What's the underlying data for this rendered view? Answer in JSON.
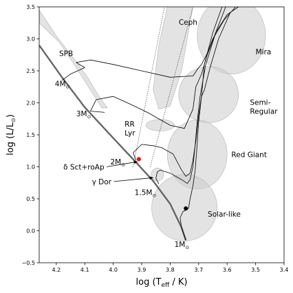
{
  "chart_data": {
    "type": "scatter",
    "xlabel": "log (T",
    "xlabel_sub": "eff",
    "xlabel_tail": " / K)",
    "ylabel": "log (L/L",
    "ylabel_sun": "⊙",
    "ylabel_tail": ")",
    "xlim": [
      4.26,
      3.4
    ],
    "ylim": [
      -0.5,
      3.5
    ],
    "x_ticks": [
      4.2,
      4.1,
      4.0,
      3.9,
      3.8,
      3.7,
      3.6,
      3.5,
      3.4
    ],
    "x_tick_labels": [
      "4.2",
      "4.1",
      "4.0",
      "3.9",
      "3.8",
      "3.7",
      "3.6",
      "3.5",
      "3.4"
    ],
    "y_ticks": [
      -0.5,
      0.0,
      0.5,
      1.0,
      1.5,
      2.0,
      2.5,
      3.0,
      3.5
    ],
    "y_tick_labels": [
      "−0.5",
      "0.0",
      "0.5",
      "1.0",
      "1.5",
      "2.0",
      "2.5",
      "3.0",
      "3.5"
    ],
    "grid": false,
    "main_sequence": [
      [
        4.26,
        2.9
      ],
      [
        4.18,
        2.4
      ],
      [
        4.1,
        1.93
      ],
      [
        4.0,
        1.45
      ],
      [
        3.92,
        1.07
      ],
      [
        3.86,
        0.78
      ],
      [
        3.8,
        0.42
      ],
      [
        3.76,
        0.05
      ],
      [
        3.745,
        -0.15
      ]
    ],
    "instability_strip": {
      "blue_edge": [
        [
          3.93,
          1.0
        ],
        [
          3.82,
          3.5
        ]
      ],
      "red_edge": [
        [
          3.87,
          1.0
        ],
        [
          3.72,
          3.5
        ]
      ]
    },
    "regions": [
      {
        "label": "SPB",
        "polygon": [
          [
            4.26,
            3.45
          ],
          [
            4.2,
            3.05
          ],
          [
            4.14,
            2.7
          ],
          [
            4.09,
            2.4
          ],
          [
            4.05,
            2.1
          ],
          [
            4.02,
            1.92
          ],
          [
            4.04,
            1.92
          ],
          [
            4.08,
            2.2
          ],
          [
            4.13,
            2.55
          ],
          [
            4.19,
            2.95
          ],
          [
            4.26,
            3.25
          ]
        ]
      },
      {
        "label": "Ceph",
        "polygon": [
          [
            3.81,
            3.5
          ],
          [
            3.72,
            3.5
          ],
          [
            3.76,
            2.5
          ],
          [
            3.8,
            1.95
          ],
          [
            3.84,
            1.9
          ],
          [
            3.86,
            2.2
          ],
          [
            3.84,
            2.9
          ]
        ]
      },
      {
        "label": "RR Lyr",
        "ellipse": {
          "cx": 3.835,
          "cy": 1.65,
          "rx": 0.05,
          "ry": 0.09
        }
      },
      {
        "label": "Mira",
        "ellipse": {
          "cx": 3.585,
          "cy": 3.05,
          "rx": 0.12,
          "ry": 0.6
        }
      },
      {
        "label": "Semi-Regular",
        "ellipse": {
          "cx": 3.665,
          "cy": 2.13,
          "rx": 0.105,
          "ry": 0.44
        }
      },
      {
        "label": "Red Giant",
        "ellipse": {
          "cx": 3.705,
          "cy": 1.19,
          "rx": 0.105,
          "ry": 0.54
        }
      },
      {
        "label": "Solar-like",
        "ellipse": {
          "cx": 3.75,
          "cy": 0.36,
          "rx": 0.115,
          "ry": 0.52
        }
      },
      {
        "label": "1.5M",
        "ellipse": {
          "cx": 3.845,
          "cy": 0.88,
          "rx": 0.022,
          "ry": 0.1
        }
      }
    ],
    "tracks": [
      {
        "label": "1M",
        "points": [
          [
            3.745,
            -0.15
          ],
          [
            3.76,
            0.05
          ],
          [
            3.765,
            0.2
          ],
          [
            3.755,
            0.3
          ],
          [
            3.74,
            0.33
          ],
          [
            3.735,
            0.36
          ],
          [
            3.73,
            0.5
          ],
          [
            3.72,
            0.7
          ],
          [
            3.712,
            0.95
          ],
          [
            3.706,
            1.3
          ],
          [
            3.7,
            1.7
          ],
          [
            3.69,
            2.1
          ],
          [
            3.68,
            2.6
          ],
          [
            3.65,
            3.1
          ],
          [
            3.618,
            3.5
          ]
        ]
      },
      {
        "label": "1.5M",
        "points": [
          [
            3.84,
            0.73
          ],
          [
            3.85,
            0.82
          ],
          [
            3.845,
            0.92
          ],
          [
            3.835,
            0.95
          ],
          [
            3.8,
            0.9
          ],
          [
            3.76,
            0.8
          ],
          [
            3.74,
            0.74
          ],
          [
            3.73,
            0.8
          ],
          [
            3.72,
            1.0
          ],
          [
            3.713,
            1.3
          ],
          [
            3.705,
            1.7
          ],
          [
            3.695,
            2.1
          ],
          [
            3.675,
            2.6
          ],
          [
            3.64,
            3.1
          ],
          [
            3.605,
            3.5
          ]
        ]
      },
      {
        "label": "2M",
        "points": [
          [
            3.92,
            1.1
          ],
          [
            3.93,
            1.22
          ],
          [
            3.9,
            1.35
          ],
          [
            3.86,
            1.33
          ],
          [
            3.83,
            1.3
          ],
          [
            3.81,
            1.25
          ],
          [
            3.79,
            1.2
          ],
          [
            3.76,
            0.95
          ],
          [
            3.745,
            0.85
          ],
          [
            3.73,
            0.9
          ],
          [
            3.72,
            1.1
          ],
          [
            3.71,
            1.4
          ],
          [
            3.7,
            1.8
          ],
          [
            3.69,
            2.1
          ],
          [
            3.68,
            2.2
          ],
          [
            3.66,
            2.55
          ],
          [
            3.63,
            3.0
          ],
          [
            3.59,
            3.4
          ]
        ]
      },
      {
        "label": "3M",
        "points": [
          [
            4.03,
            1.85
          ],
          [
            4.08,
            1.87
          ],
          [
            4.06,
            2.05
          ],
          [
            4.0,
            2.1
          ],
          [
            3.95,
            2.0
          ],
          [
            3.88,
            1.85
          ],
          [
            3.8,
            1.65
          ],
          [
            3.75,
            1.6
          ],
          [
            3.72,
            1.9
          ],
          [
            3.71,
            2.25
          ],
          [
            3.69,
            2.45
          ],
          [
            3.67,
            2.75
          ],
          [
            3.64,
            3.1
          ],
          [
            3.6,
            3.38
          ],
          [
            3.56,
            3.5
          ]
        ]
      },
      {
        "label": "4M",
        "points": [
          [
            4.18,
            2.35
          ],
          [
            4.15,
            2.45
          ],
          [
            4.1,
            2.55
          ],
          [
            4.13,
            2.63
          ],
          [
            4.08,
            2.67
          ],
          [
            4.0,
            2.6
          ],
          [
            3.9,
            2.5
          ],
          [
            3.8,
            2.4
          ],
          [
            3.72,
            2.42
          ],
          [
            3.7,
            2.55
          ],
          [
            3.69,
            2.6
          ],
          [
            3.67,
            2.77
          ],
          [
            3.65,
            3.0
          ],
          [
            3.61,
            3.3
          ],
          [
            3.57,
            3.5
          ]
        ]
      }
    ],
    "points": [
      {
        "x": 3.91,
        "y": 1.12,
        "color": "#ff0000"
      },
      {
        "x": 3.745,
        "y": 0.35,
        "color": "#000000"
      }
    ],
    "annotations": [
      {
        "text": "SPB",
        "x": 4.19,
        "y": 2.73
      },
      {
        "text": "Ceph",
        "x": 3.77,
        "y": 3.22
      },
      {
        "text": "Mira",
        "x": 3.5,
        "y": 2.76
      },
      {
        "text": "Semi-",
        "x": 3.52,
        "y": 1.97
      },
      {
        "text": "Regular",
        "x": 3.52,
        "y": 1.83
      },
      {
        "text": "RR",
        "x": 3.96,
        "y": 1.63
      },
      {
        "text": "Lyr",
        "x": 3.96,
        "y": 1.49
      },
      {
        "text": "Red Giant",
        "x": 3.585,
        "y": 1.15
      },
      {
        "text": "Solar-like",
        "x": 3.668,
        "y": 0.22
      },
      {
        "text": "4M",
        "x": 4.205,
        "y": 2.26
      },
      {
        "text": "3M",
        "x": 4.13,
        "y": 1.79
      },
      {
        "text": "2M",
        "x": 4.01,
        "y": 1.04
      },
      {
        "text": "1.5M",
        "x": 3.925,
        "y": 0.56
      },
      {
        "text": "1M",
        "x": 3.785,
        "y": -0.25
      }
    ],
    "arrow_labels": [
      {
        "text": "δ Sct+roAp",
        "x": 4.175,
        "y": 1.0,
        "to": [
          3.915,
          1.08
        ]
      },
      {
        "text": "γ Dor",
        "x": 4.075,
        "y": 0.77,
        "to": [
          3.86,
          0.83
        ]
      }
    ],
    "solar_symbol": "⊙",
    "colors": {
      "region_fill": "#cccccc",
      "region_edge": "#b3b3b3",
      "main_sequence": "#666666",
      "track": "#000000",
      "strip_edge": "#000000"
    }
  }
}
